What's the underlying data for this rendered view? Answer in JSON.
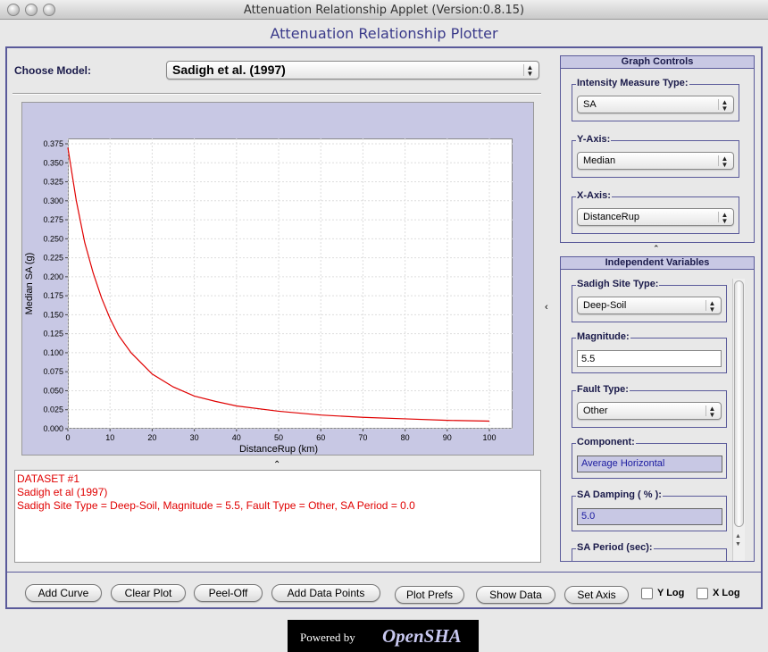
{
  "window": {
    "title": "Attenuation Relationship Applet (Version:0.8.15)"
  },
  "app": {
    "title": "Attenuation Relationship Plotter"
  },
  "model": {
    "label": "Choose Model:",
    "value": "Sadigh et al. (1997)"
  },
  "graph_controls": {
    "title": "Graph Controls",
    "imt": {
      "label": "Intensity Measure Type:",
      "value": "SA"
    },
    "yaxis": {
      "label": "Y-Axis:",
      "value": "Median"
    },
    "xaxis": {
      "label": "X-Axis:",
      "value": "DistanceRup"
    }
  },
  "independent": {
    "title": "Independent Variables",
    "site_type": {
      "label": "Sadigh Site Type:",
      "value": "Deep-Soil"
    },
    "magnitude": {
      "label": "Magnitude:",
      "value": "5.5"
    },
    "fault_type": {
      "label": "Fault Type:",
      "value": "Other"
    },
    "component": {
      "label": "Component:",
      "value": "Average Horizontal"
    },
    "damping": {
      "label": "SA Damping ( % ):",
      "value": "5.0"
    },
    "period": {
      "label": "SA Period (sec):"
    }
  },
  "info": {
    "lines": [
      "DATASET #1",
      "Sadigh et al (1997)",
      "Sadigh Site Type = Deep-Soil, Magnitude = 5.5, Fault Type = Other, SA Period = 0.0"
    ]
  },
  "buttons": {
    "add_curve": "Add Curve",
    "clear_plot": "Clear Plot",
    "peel_off": "Peel-Off",
    "add_points": "Add Data Points",
    "plot_prefs": "Plot Prefs",
    "show_data": "Show Data",
    "set_axis": "Set Axis",
    "ylog": "Y Log",
    "xlog": "X Log"
  },
  "footer": {
    "powered": "Powered by",
    "brand": "OpenSHA"
  },
  "colors": {
    "curve": "#e00000",
    "plot_bg": "#c8c8e4",
    "accent": "#5a5a9a"
  },
  "chart_data": {
    "type": "line",
    "xlabel": "DistanceRup (km)",
    "ylabel": "Median SA (g)",
    "xlim": [
      0,
      100
    ],
    "ylim": [
      0,
      0.375
    ],
    "x_ticks": [
      "0",
      "10",
      "20",
      "30",
      "40",
      "50",
      "60",
      "70",
      "80",
      "90",
      "100"
    ],
    "y_ticks": [
      "0.000",
      "0.025",
      "0.050",
      "0.075",
      "0.100",
      "0.125",
      "0.150",
      "0.175",
      "0.200",
      "0.225",
      "0.250",
      "0.275",
      "0.300",
      "0.325",
      "0.350",
      "0.375"
    ],
    "grid": true,
    "series": [
      {
        "color": "#e00000",
        "x": [
          0,
          2,
          4,
          6,
          8,
          10,
          12,
          15,
          20,
          25,
          30,
          35,
          40,
          50,
          60,
          70,
          80,
          90,
          100
        ],
        "y": [
          0.37,
          0.3,
          0.245,
          0.205,
          0.172,
          0.145,
          0.123,
          0.1,
          0.072,
          0.055,
          0.043,
          0.036,
          0.03,
          0.023,
          0.018,
          0.015,
          0.013,
          0.011,
          0.01
        ]
      }
    ]
  }
}
